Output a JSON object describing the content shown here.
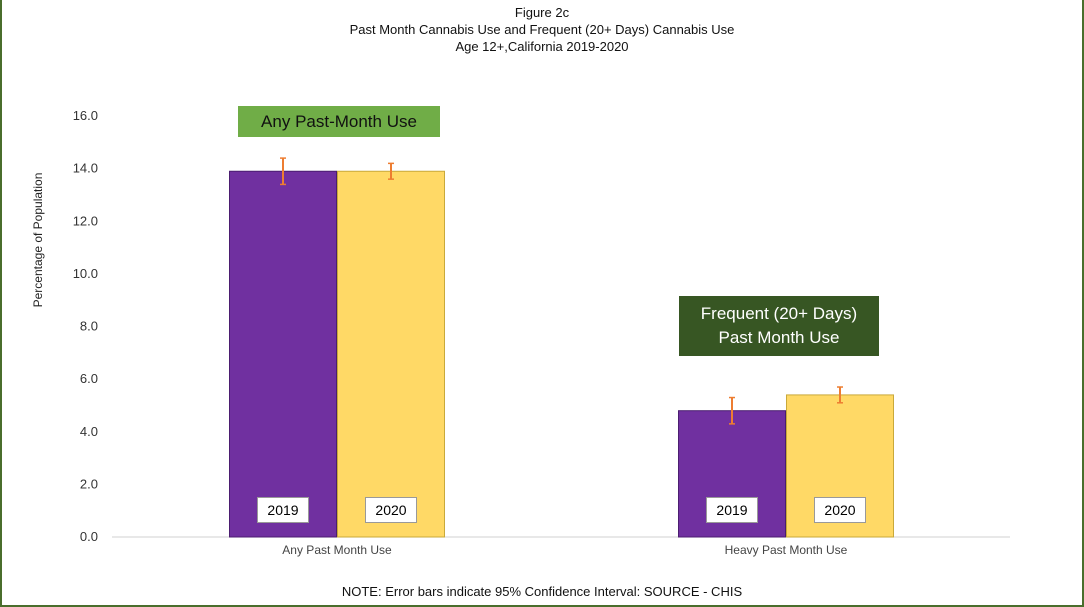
{
  "chart_data": {
    "type": "bar",
    "title": "Figure 2c",
    "subtitle_lines": [
      "Past Month Cannabis Use and Frequent (20+ Days) Cannabis Use",
      "Age 12+,California 2019-2020"
    ],
    "ylabel": "Percentage of Population",
    "ylim": [
      0,
      16
    ],
    "yticks": [
      "0.0",
      "2.0",
      "4.0",
      "6.0",
      "8.0",
      "10.0",
      "12.0",
      "14.0",
      "16.0"
    ],
    "categories": [
      "Any Past Month Use",
      "Heavy Past Month Use"
    ],
    "series": [
      {
        "name": "2019",
        "color": "#7030a0",
        "values": [
          13.9,
          4.8
        ],
        "ci_low": [
          13.4,
          4.3
        ],
        "ci_high": [
          14.4,
          5.3
        ]
      },
      {
        "name": "2020",
        "color": "#ffd966",
        "values": [
          13.9,
          5.4
        ],
        "ci_low": [
          13.6,
          5.1
        ],
        "ci_high": [
          14.2,
          5.7
        ]
      }
    ],
    "error_bar_color": "#ed7d31",
    "annotations": {
      "any_use": "Any Past-Month Use",
      "frequent_line1": "Frequent (20+ Days)",
      "frequent_line2": "Past Month Use"
    },
    "annotation_colors": {
      "any_use": "#70ad47",
      "frequent": "#375623"
    }
  },
  "note": "NOTE: Error bars indicate 95% Confidence Interval: SOURCE - CHIS"
}
